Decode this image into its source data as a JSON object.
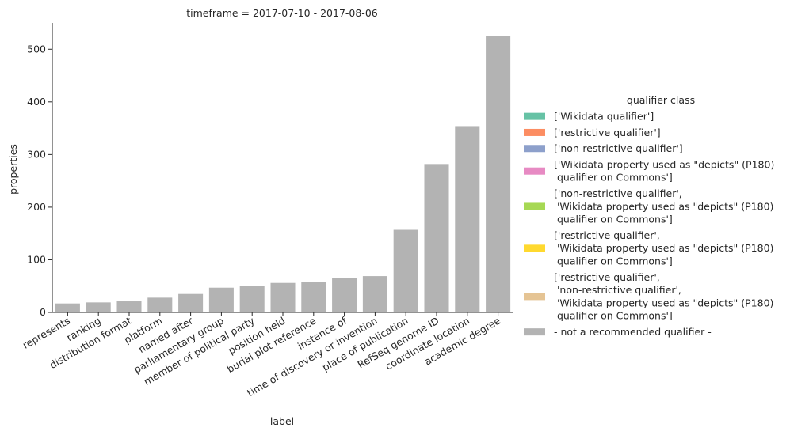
{
  "chart_data": {
    "type": "bar",
    "title": "timeframe = 2017-07-10 - 2017-08-06",
    "xlabel": "label",
    "ylabel": "properties",
    "ylim": [
      0,
      550
    ],
    "yticks": [
      0,
      100,
      200,
      300,
      400,
      500
    ],
    "grid": false,
    "categories": [
      "represents",
      "ranking",
      "distribution format",
      "platform",
      "named after",
      "parliamentary group",
      "member of political party",
      "position held",
      "burial plot reference",
      "instance of",
      "time of discovery or invention",
      "place of publication",
      "RefSeq genome ID",
      "coordinate location",
      "academic degree"
    ],
    "series": [
      {
        "name": "- not a recommended qualifier -",
        "color": "#b3b3b3",
        "values": [
          17,
          19,
          21,
          28,
          35,
          47,
          51,
          56,
          58,
          65,
          69,
          157,
          282,
          354,
          525
        ]
      }
    ],
    "legend": {
      "title": "qualifier class",
      "placement": "right",
      "entries": [
        {
          "lines": [
            "['Wikidata qualifier']"
          ],
          "color": "#66c2a5"
        },
        {
          "lines": [
            "['restrictive qualifier']"
          ],
          "color": "#fc8d62"
        },
        {
          "lines": [
            "['non-restrictive qualifier']"
          ],
          "color": "#8da0cb"
        },
        {
          "lines": [
            "['Wikidata property used as \"depicts\" (P180)",
            " qualifier on Commons']"
          ],
          "color": "#e78ac3"
        },
        {
          "lines": [
            "['non-restrictive qualifier',",
            " 'Wikidata property used as \"depicts\" (P180)",
            " qualifier on Commons']"
          ],
          "color": "#a6d854"
        },
        {
          "lines": [
            "['restrictive qualifier',",
            " 'Wikidata property used as \"depicts\" (P180)",
            " qualifier on Commons']"
          ],
          "color": "#ffd92f"
        },
        {
          "lines": [
            "['restrictive qualifier',",
            " 'non-restrictive qualifier',",
            " 'Wikidata property used as \"depicts\" (P180)",
            " qualifier on Commons']"
          ],
          "color": "#e5c494"
        },
        {
          "lines": [
            "- not a recommended qualifier -"
          ],
          "color": "#b3b3b3"
        }
      ]
    }
  }
}
